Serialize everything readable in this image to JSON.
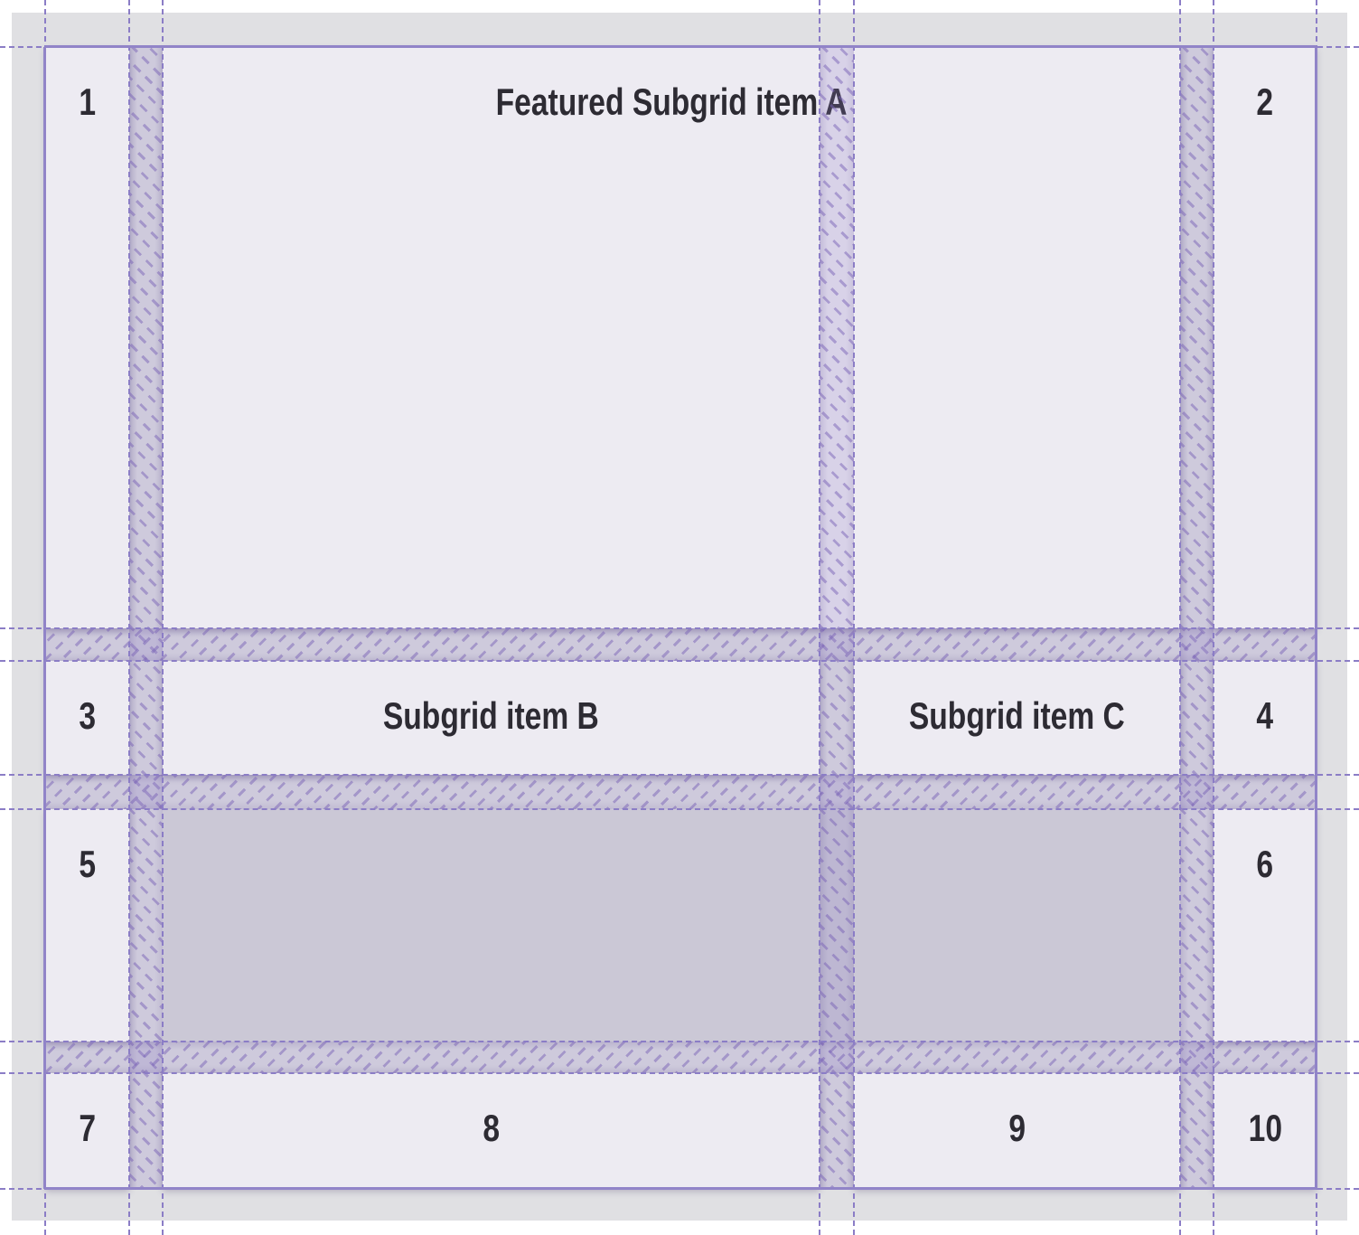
{
  "grid": {
    "items": [
      {
        "label": "1"
      },
      {
        "label": "Featured Subgrid item A"
      },
      {
        "label": "2"
      },
      {
        "label": "3"
      },
      {
        "label": "Subgrid item B"
      },
      {
        "label": "Subgrid item C"
      },
      {
        "label": "4"
      },
      {
        "label": "5"
      },
      {
        "label": "6"
      },
      {
        "label": "7"
      },
      {
        "label": "8"
      },
      {
        "label": "9"
      },
      {
        "label": "10"
      }
    ]
  },
  "colors": {
    "page_background": "#ffffff",
    "container_background": "#e0e0e3",
    "item_background": "#edebf2",
    "empty_area_background": "#cbc8d6",
    "band_fill": "rgba(141,121,197,0.22)",
    "hatch": "rgba(122,99,182,0.5)",
    "grid_line": "#8b7dc6",
    "grid_border": "#9184c8",
    "text": "#2d2b33"
  }
}
